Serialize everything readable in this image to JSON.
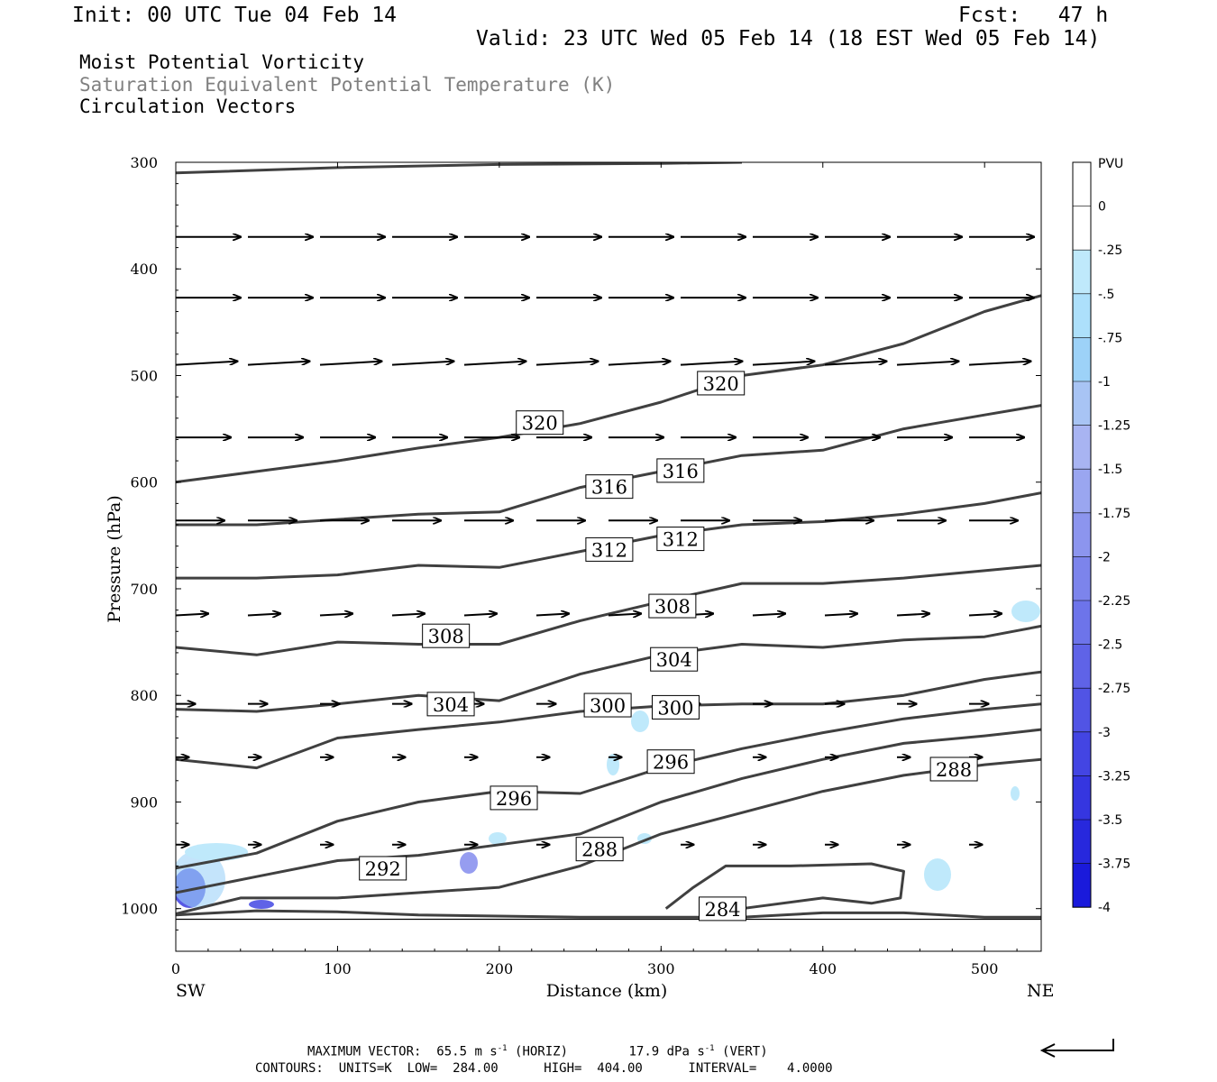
{
  "header": {
    "init": "Init: 00 UTC Tue 04 Feb 14",
    "fcst": "Fcst:   47 h",
    "valid": "Valid: 23 UTC Wed 05 Feb 14 (18 EST Wed 05 Feb 14)"
  },
  "titles": {
    "line1": "Moist Potential Vorticity",
    "line2": "Saturation Equivalent Potential Temperature (K)",
    "line3": "Circulation Vectors"
  },
  "footer": {
    "max_vector_label": "MAXIMUM VECTOR:",
    "horiz_value": "65.5 m s",
    "horiz_unit": "(HORIZ)",
    "vert_value": "17.9 dPa s",
    "vert_unit": "(VERT)",
    "exp": "-1",
    "contours": "CONTOURS:  UNITS=K  LOW=  284.00      HIGH=  404.00      INTERVAL=    4.0000"
  },
  "chart_data": {
    "type": "line",
    "xlabel": "Distance (km)",
    "ylabel": "Pressure (hPa)",
    "xlim": [
      0,
      535
    ],
    "ylim": [
      300,
      1040
    ],
    "x_ticks": [
      "0",
      "100",
      "200",
      "300",
      "400",
      "500"
    ],
    "y_ticks": [
      "300",
      "400",
      "500",
      "600",
      "700",
      "800",
      "900",
      "1000"
    ],
    "x_end_labels": {
      "left": "SW",
      "right": "NE"
    },
    "colorbar": {
      "unit": "PVU",
      "labels": [
        "0",
        "-.25",
        "-.5",
        "-.75",
        "-1",
        "-1.25",
        "-1.5",
        "-1.75",
        "-2",
        "-2.25",
        "-2.5",
        "-2.75",
        "-3",
        "-3.25",
        "-3.5",
        "-3.75",
        "-4"
      ],
      "colors": [
        "#ffffff",
        "#ffffff",
        "#bfe9fb",
        "#ade0fb",
        "#9dd2f8",
        "#a8c4f4",
        "#a8b4f2",
        "#9aa6f0",
        "#8c95ee",
        "#7c84ec",
        "#6d74ea",
        "#5f63e7",
        "#5154e5",
        "#4345e3",
        "#3536e0",
        "#2728dd",
        "#1a1adb"
      ]
    },
    "contours": [
      {
        "label": "284",
        "points": [
          [
            0,
            1006
          ],
          [
            50,
            1002
          ],
          [
            100,
            1003
          ],
          [
            150,
            1006
          ],
          [
            200,
            1007
          ],
          [
            250,
            1008
          ],
          [
            300,
            1008
          ],
          [
            350,
            1008
          ],
          [
            400,
            1004
          ],
          [
            450,
            1004
          ],
          [
            500,
            1008
          ],
          [
            535,
            1008
          ]
        ]
      },
      {
        "label": "284",
        "points": [
          [
            303,
            1000
          ],
          [
            320,
            980
          ],
          [
            340,
            960
          ],
          [
            380,
            960
          ],
          [
            430,
            958
          ],
          [
            450,
            965
          ],
          [
            448,
            990
          ],
          [
            430,
            995
          ],
          [
            400,
            990
          ],
          [
            350,
            1000
          ]
        ]
      },
      {
        "label": "288",
        "points": [
          [
            0,
            1005
          ],
          [
            40,
            990
          ],
          [
            100,
            990
          ],
          [
            150,
            985
          ],
          [
            200,
            980
          ],
          [
            250,
            960
          ],
          [
            300,
            930
          ],
          [
            350,
            910
          ],
          [
            400,
            890
          ],
          [
            450,
            875
          ],
          [
            500,
            865
          ],
          [
            535,
            860
          ]
        ]
      },
      {
        "label": "292",
        "points": [
          [
            0,
            985
          ],
          [
            50,
            970
          ],
          [
            100,
            955
          ],
          [
            150,
            950
          ],
          [
            200,
            940
          ],
          [
            250,
            930
          ],
          [
            300,
            900
          ],
          [
            350,
            878
          ],
          [
            400,
            860
          ],
          [
            450,
            845
          ],
          [
            500,
            838
          ],
          [
            535,
            832
          ]
        ]
      },
      {
        "label": "296",
        "points": [
          [
            0,
            962
          ],
          [
            50,
            948
          ],
          [
            100,
            918
          ],
          [
            150,
            900
          ],
          [
            200,
            890
          ],
          [
            250,
            892
          ],
          [
            300,
            868
          ],
          [
            350,
            850
          ],
          [
            400,
            835
          ],
          [
            450,
            822
          ],
          [
            500,
            813
          ],
          [
            535,
            808
          ]
        ]
      },
      {
        "label": "300",
        "points": [
          [
            0,
            860
          ],
          [
            50,
            868
          ],
          [
            100,
            840
          ],
          [
            150,
            832
          ],
          [
            200,
            825
          ],
          [
            250,
            815
          ],
          [
            300,
            810
          ],
          [
            350,
            808
          ],
          [
            400,
            808
          ],
          [
            450,
            800
          ],
          [
            500,
            785
          ],
          [
            535,
            778
          ]
        ]
      },
      {
        "label": "304",
        "points": [
          [
            0,
            813
          ],
          [
            50,
            815
          ],
          [
            100,
            808
          ],
          [
            150,
            800
          ],
          [
            200,
            805
          ],
          [
            250,
            780
          ],
          [
            300,
            762
          ],
          [
            350,
            752
          ],
          [
            400,
            755
          ],
          [
            450,
            748
          ],
          [
            500,
            745
          ],
          [
            535,
            735
          ]
        ]
      },
      {
        "label": "308",
        "points": [
          [
            0,
            755
          ],
          [
            50,
            762
          ],
          [
            100,
            750
          ],
          [
            150,
            752
          ],
          [
            200,
            752
          ],
          [
            250,
            730
          ],
          [
            300,
            712
          ],
          [
            350,
            695
          ],
          [
            400,
            695
          ],
          [
            450,
            690
          ],
          [
            500,
            683
          ],
          [
            535,
            678
          ]
        ]
      },
      {
        "label": "312",
        "points": [
          [
            0,
            690
          ],
          [
            50,
            690
          ],
          [
            100,
            687
          ],
          [
            150,
            678
          ],
          [
            200,
            680
          ],
          [
            250,
            665
          ],
          [
            300,
            650
          ],
          [
            350,
            640
          ],
          [
            400,
            637
          ],
          [
            450,
            630
          ],
          [
            500,
            620
          ],
          [
            535,
            610
          ]
        ]
      },
      {
        "label": "316",
        "points": [
          [
            0,
            640
          ],
          [
            50,
            640
          ],
          [
            100,
            635
          ],
          [
            150,
            630
          ],
          [
            200,
            628
          ],
          [
            250,
            605
          ],
          [
            300,
            590
          ],
          [
            350,
            575
          ],
          [
            400,
            570
          ],
          [
            450,
            550
          ],
          [
            500,
            537
          ],
          [
            535,
            528
          ]
        ]
      },
      {
        "label": "320",
        "points": [
          [
            0,
            600
          ],
          [
            50,
            590
          ],
          [
            100,
            580
          ],
          [
            150,
            568
          ],
          [
            200,
            558
          ],
          [
            250,
            545
          ],
          [
            300,
            525
          ],
          [
            350,
            500
          ],
          [
            400,
            490
          ],
          [
            450,
            470
          ],
          [
            500,
            440
          ],
          [
            535,
            425
          ]
        ]
      },
      {
        "label": "320",
        "points": [
          [
            0,
            310
          ],
          [
            100,
            305
          ],
          [
            200,
            302
          ],
          [
            300,
            301
          ],
          [
            350,
            300
          ]
        ]
      }
    ],
    "contour_labels": [
      {
        "text": "320",
        "x": 337,
        "p": 508
      },
      {
        "text": "320",
        "x": 225,
        "p": 545
      },
      {
        "text": "316",
        "x": 312,
        "p": 590
      },
      {
        "text": "316",
        "x": 268,
        "p": 605
      },
      {
        "text": "312",
        "x": 312,
        "p": 654
      },
      {
        "text": "312",
        "x": 268,
        "p": 664
      },
      {
        "text": "308",
        "x": 307,
        "p": 717
      },
      {
        "text": "308",
        "x": 167,
        "p": 745
      },
      {
        "text": "304",
        "x": 308,
        "p": 767
      },
      {
        "text": "304",
        "x": 170,
        "p": 809
      },
      {
        "text": "300",
        "x": 267,
        "p": 810
      },
      {
        "text": "300",
        "x": 309,
        "p": 812
      },
      {
        "text": "296",
        "x": 306,
        "p": 863
      },
      {
        "text": "296",
        "x": 209,
        "p": 897
      },
      {
        "text": "292",
        "x": 128,
        "p": 963
      },
      {
        "text": "288",
        "x": 262,
        "p": 945
      },
      {
        "text": "288",
        "x": 481,
        "p": 870
      },
      {
        "text": "284",
        "x": 338,
        "p": 1001
      }
    ],
    "vector_rows": [
      {
        "p": 370,
        "len": 40,
        "dy": 0
      },
      {
        "p": 427,
        "len": 40,
        "dy": 0
      },
      {
        "p": 490,
        "len": 38,
        "dy": 2
      },
      {
        "p": 558,
        "len": 34,
        "dy": 0
      },
      {
        "p": 636,
        "len": 30,
        "dy": 0
      },
      {
        "p": 725,
        "len": 20,
        "dy": 1
      },
      {
        "p": 808,
        "len": 12,
        "dy": 0
      },
      {
        "p": 858,
        "len": 8,
        "dy": 0
      },
      {
        "p": 940,
        "len": 8,
        "dy": 0
      }
    ]
  }
}
